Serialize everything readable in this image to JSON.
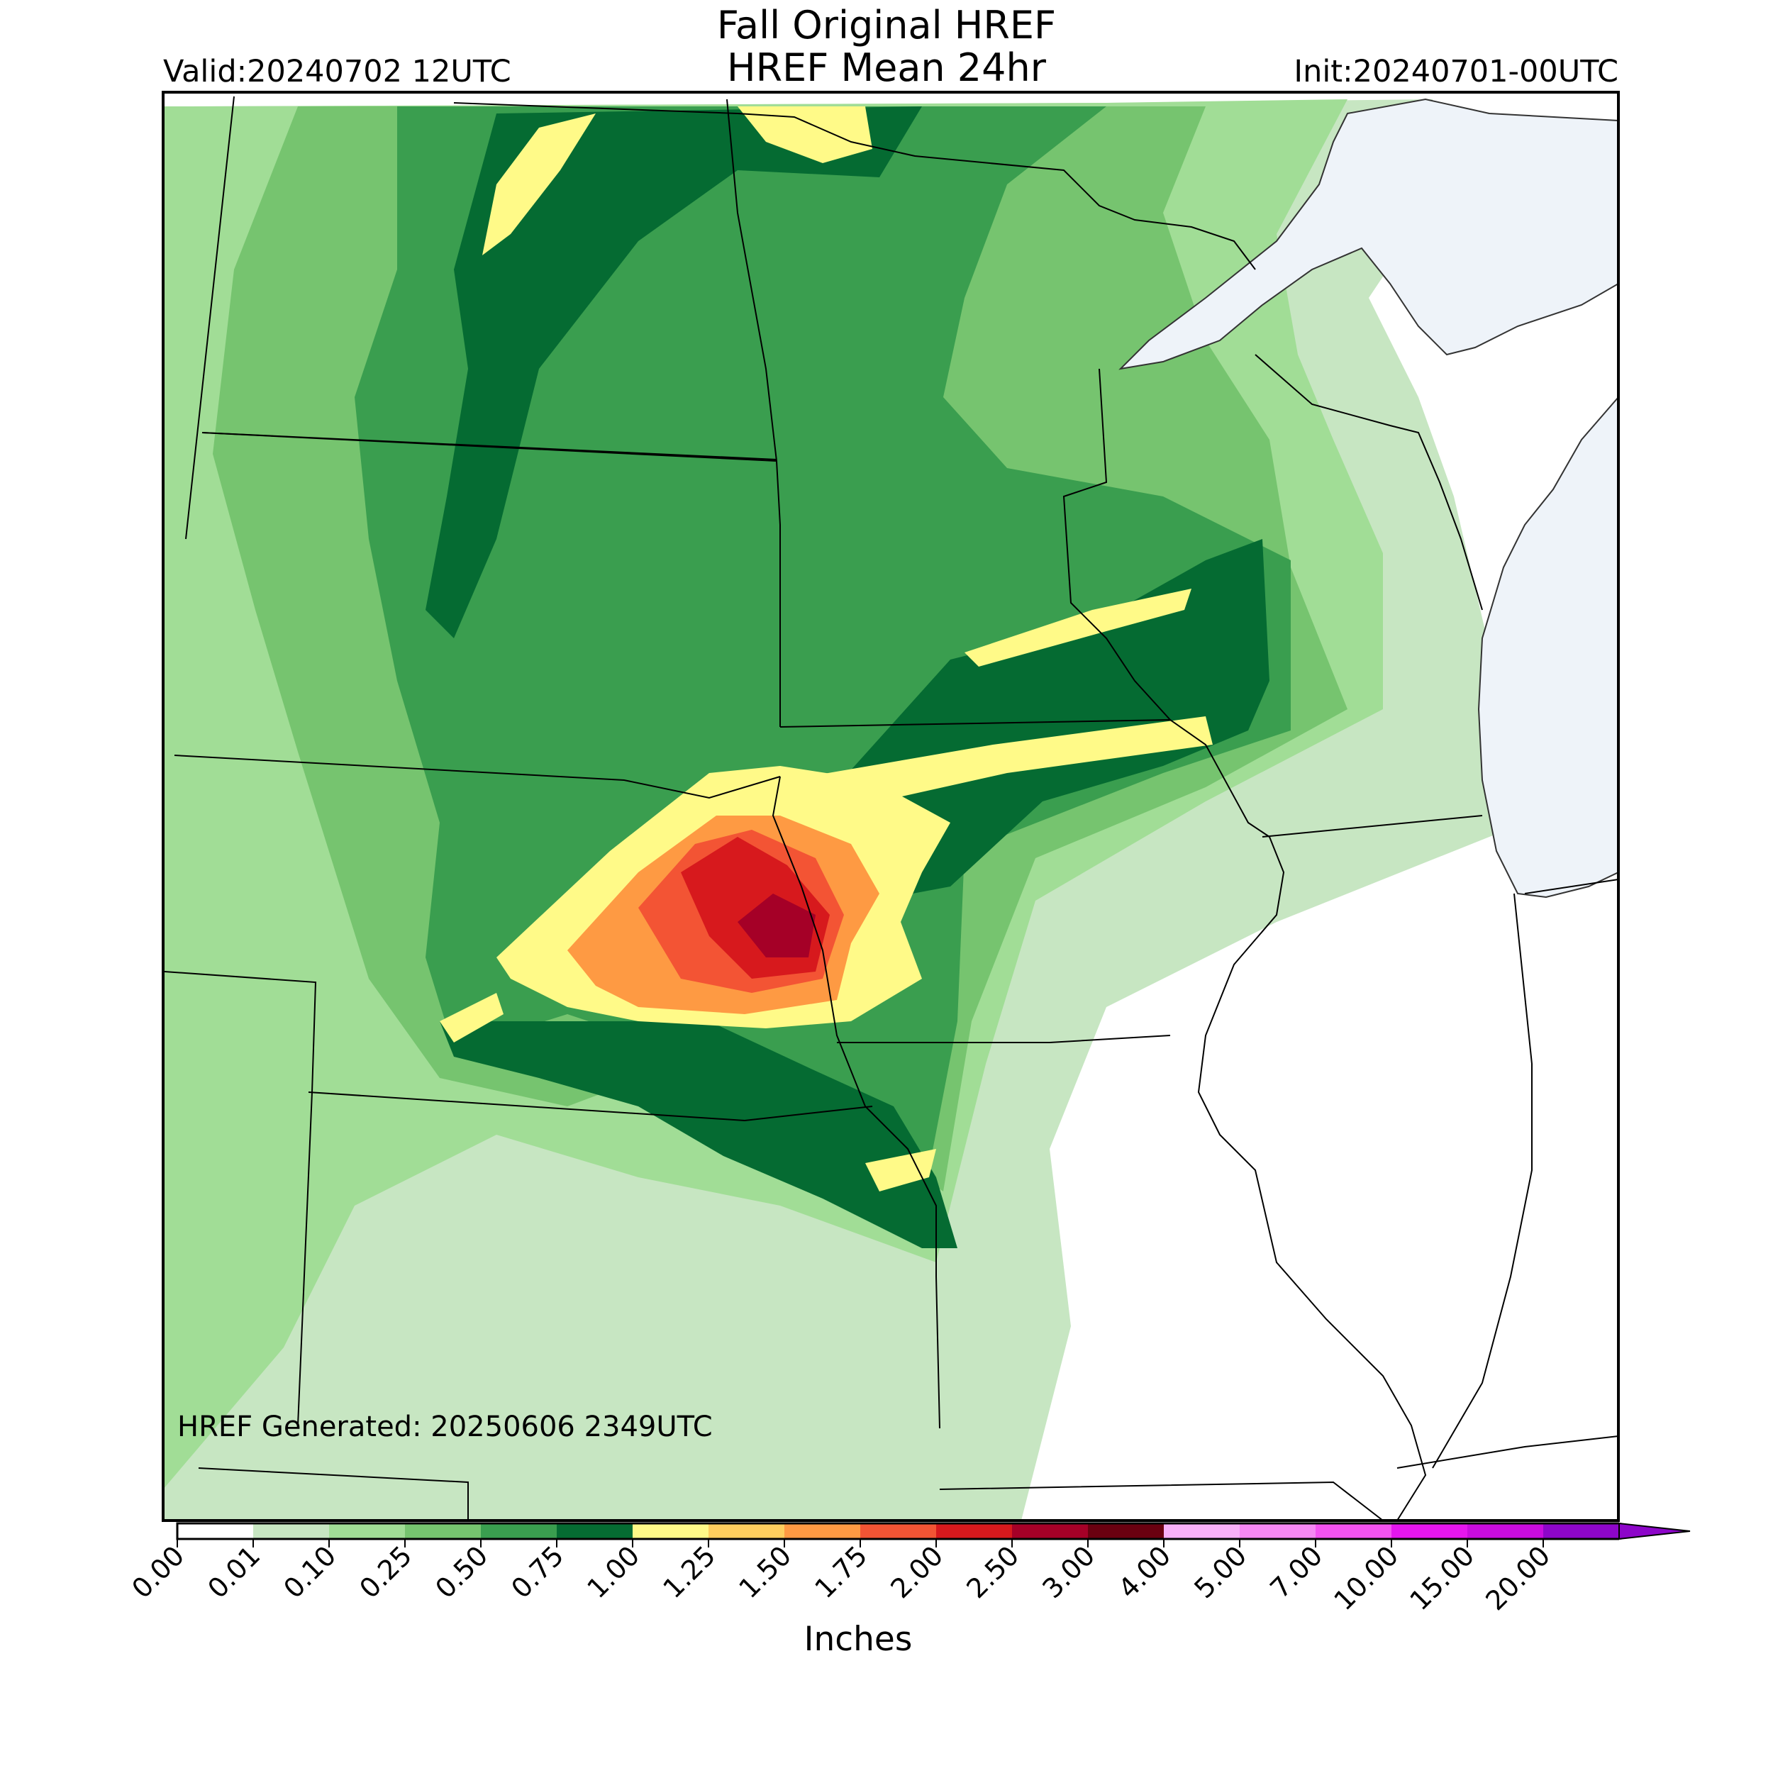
{
  "header": {
    "title_line1": "Fall Original HREF",
    "title_line2": "HREF Mean 24hr",
    "valid": "Valid:20240702 12UTC",
    "init": "Init:20240701-00UTC"
  },
  "map": {
    "generated_note": "HREF Generated: 20250606 2349UTC",
    "water_color": "#eef3f9",
    "no_precip_color": "#ffffff"
  },
  "colorbar": {
    "units_label": "Inches",
    "ticks": [
      "0.00",
      "0.01",
      "0.10",
      "0.25",
      "0.50",
      "0.75",
      "1.00",
      "1.25",
      "1.50",
      "1.75",
      "2.00",
      "2.50",
      "3.00",
      "4.00",
      "5.00",
      "7.00",
      "10.00",
      "15.00",
      "20.00"
    ],
    "colors": [
      "#ffffff",
      "#c7e6c2",
      "#a1dd96",
      "#76c46f",
      "#3a9e4f",
      "#056b32",
      "#fffa88",
      "#fece5e",
      "#fe9a43",
      "#f35434",
      "#d7191d",
      "#a50027",
      "#6a0010",
      "#f9b0f8",
      "#f688f4",
      "#f453f1",
      "#e516ee",
      "#c80cde",
      "#8d06c9"
    ],
    "extend": "max"
  }
}
